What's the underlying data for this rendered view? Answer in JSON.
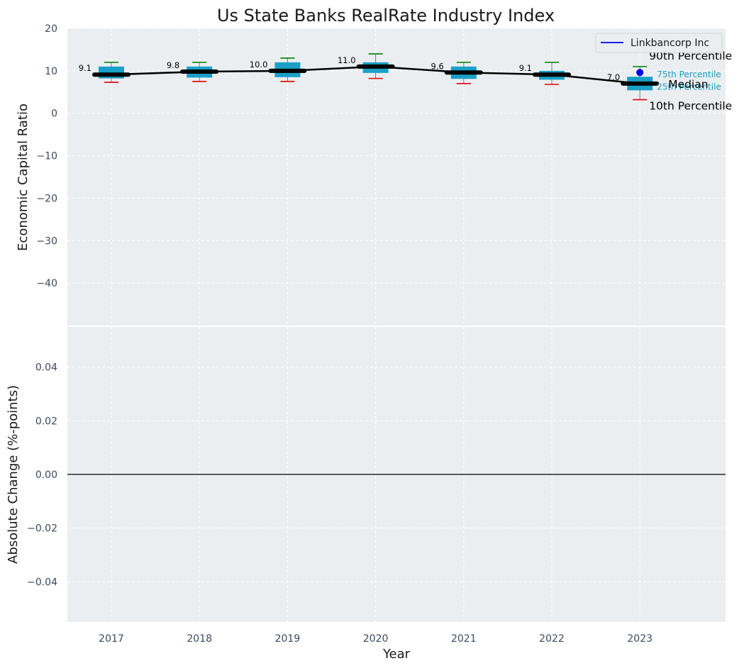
{
  "chart_data": [
    {
      "type": "box",
      "title": "Us State Banks RealRate Industry Index",
      "xlabel": "",
      "ylabel": "Economic Capital Ratio",
      "ylim": [
        -50,
        20
      ],
      "yticks": [
        20,
        10,
        0,
        -10,
        -20,
        -30,
        -40
      ],
      "grid": true,
      "legend": {
        "position": "top-right",
        "entries": [
          "Linkbancorp Inc"
        ]
      },
      "categories": [
        "2017",
        "2018",
        "2019",
        "2020",
        "2021",
        "2022",
        "2023"
      ],
      "p10": [
        7.3,
        7.5,
        7.5,
        8.2,
        7.0,
        6.8,
        3.2
      ],
      "p25": [
        8.2,
        8.4,
        8.5,
        9.5,
        8.1,
        7.9,
        5.4
      ],
      "median": [
        9.1,
        9.8,
        10.0,
        11.0,
        9.6,
        9.1,
        7.0
      ],
      "p75": [
        11.0,
        11.0,
        12.0,
        12.0,
        11.0,
        10.0,
        8.6
      ],
      "p90": [
        12.0,
        12.0,
        13.0,
        14.0,
        12.0,
        12.0,
        11.0
      ],
      "median_labels": [
        "9.1",
        "9.8",
        "10.0",
        "11.0",
        "9.6",
        "9.1",
        "7.0"
      ],
      "company": {
        "name": "Linkbancorp Inc",
        "x": "2023",
        "value": 9.6
      },
      "annotations": {
        "p90": "90th Percentile",
        "p75": "75th Percentile",
        "median": "Median",
        "p25": "25th Percentile",
        "p10": "10th Percentile"
      },
      "colors": {
        "box": "#1aa0c8",
        "median_line": "#000000",
        "p90_whisker": "#008000",
        "p10_whisker": "#e00000",
        "company": "#0000ee",
        "background": "#eaeef0"
      }
    },
    {
      "type": "line",
      "xlabel": "Year",
      "ylabel": "Absolute Change (%-points)",
      "ylim": [
        -0.055,
        0.055
      ],
      "yticks": [
        0.04,
        0.02,
        0.0,
        -0.02,
        -0.04
      ],
      "ytick_labels": [
        "0.04",
        "0.02",
        "0.00",
        "−0.02",
        "−0.04"
      ],
      "xticks": [
        "2017",
        "2018",
        "2019",
        "2020",
        "2021",
        "2022",
        "2023"
      ],
      "reference_line": 0.0,
      "grid": true
    }
  ]
}
